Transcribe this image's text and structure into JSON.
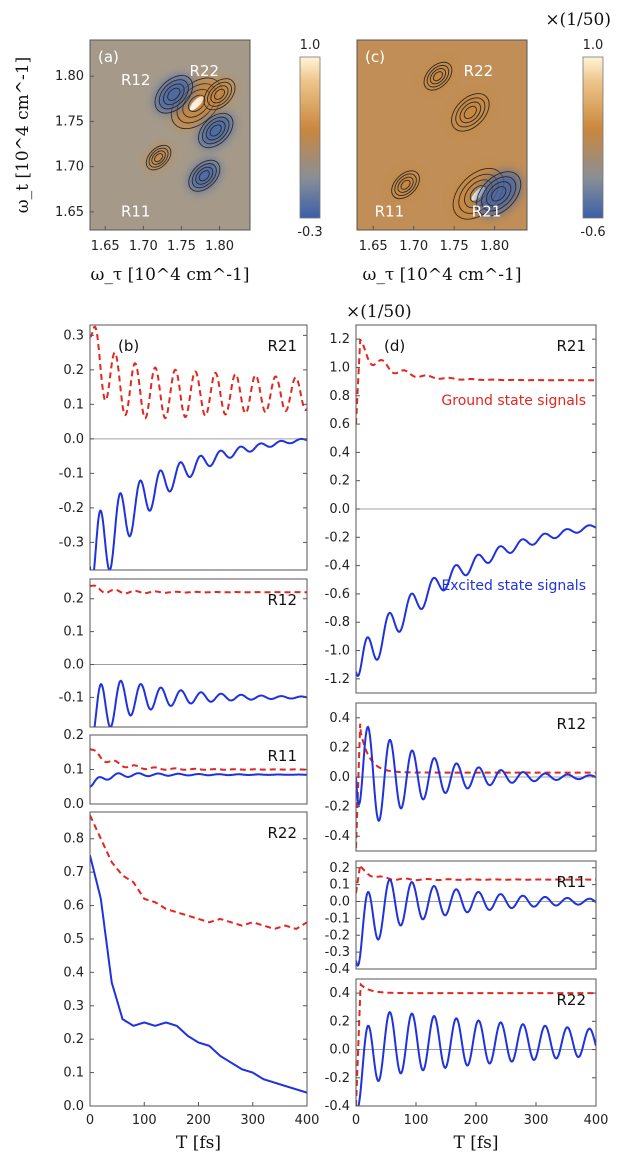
{
  "colors": {
    "excited": "#1f32e0",
    "ground": "#e3261e",
    "zero_line": "#a0a0a0",
    "map_pos": "#c9873e",
    "map_neg": "#3f63a8",
    "map_bg": "#93908a"
  },
  "chart_data": [
    {
      "id": "a",
      "type": "heatmap",
      "panel_label": "(a)",
      "xlabel": "ω_τ [10^4 cm^-1]",
      "ylabel": "ω_t [10^4 cm^-1]",
      "xticks": [
        "1.65",
        "1.70",
        "1.75",
        "1.80"
      ],
      "yticks": [
        "1.65",
        "1.70",
        "1.75",
        "1.80"
      ],
      "xlim": [
        1.63,
        1.84
      ],
      "ylim": [
        1.63,
        1.84
      ],
      "colorbar": {
        "max": "1.0",
        "min": "-0.3",
        "scale_note": ""
      },
      "peak_labels": [
        {
          "text": "R12",
          "x": 1.69,
          "y": 1.79
        },
        {
          "text": "R22",
          "x": 1.78,
          "y": 1.8
        },
        {
          "text": "R11",
          "x": 1.69,
          "y": 1.645
        }
      ],
      "features": [
        {
          "x": 1.77,
          "y": 1.77,
          "sign": 1,
          "amp": 1.0
        },
        {
          "x": 1.74,
          "y": 1.78,
          "sign": -1,
          "amp": 0.6
        },
        {
          "x": 1.795,
          "y": 1.74,
          "sign": -1,
          "amp": 0.5
        },
        {
          "x": 1.78,
          "y": 1.69,
          "sign": -1,
          "amp": 0.4
        },
        {
          "x": 1.8,
          "y": 1.78,
          "sign": 1,
          "amp": 0.4
        },
        {
          "x": 1.72,
          "y": 1.71,
          "sign": 1,
          "amp": 0.2
        }
      ]
    },
    {
      "id": "c",
      "type": "heatmap",
      "panel_label": "(c)",
      "xlabel": "ω_τ [10^4 cm^-1]",
      "ylabel": "",
      "xticks": [
        "1.65",
        "1.70",
        "1.75",
        "1.80"
      ],
      "yticks": [],
      "xlim": [
        1.63,
        1.84
      ],
      "ylim": [
        1.63,
        1.84
      ],
      "colorbar": {
        "max": "1.0",
        "min": "-0.6",
        "scale_note": "×(1/50)"
      },
      "peak_labels": [
        {
          "text": "R22",
          "x": 1.78,
          "y": 1.8
        },
        {
          "text": "R11",
          "x": 1.67,
          "y": 1.645
        },
        {
          "text": "R21",
          "x": 1.79,
          "y": 1.645
        }
      ],
      "features": [
        {
          "x": 1.78,
          "y": 1.67,
          "sign": 1,
          "amp": 1.0
        },
        {
          "x": 1.805,
          "y": 1.67,
          "sign": -1,
          "amp": 0.8
        },
        {
          "x": 1.77,
          "y": 1.76,
          "sign": 1,
          "amp": 0.6
        },
        {
          "x": 1.73,
          "y": 1.8,
          "sign": 1,
          "amp": 0.3
        },
        {
          "x": 1.69,
          "y": 1.68,
          "sign": 1,
          "amp": 0.3
        }
      ]
    },
    {
      "id": "b_R21",
      "type": "line",
      "panel_label": "(b)",
      "signal_label": "R21",
      "xlim": [
        0,
        400
      ],
      "ylim": [
        -0.38,
        0.33
      ],
      "yticks": [
        "0.3",
        "0.2",
        "0.1",
        "0.0",
        "-0.1",
        "-0.2",
        "-0.3"
      ],
      "series": [
        {
          "role": "ground",
          "style": "dashed",
          "model": "osc",
          "base": 0.13,
          "start": 0.3,
          "tau": 30,
          "amp": 0.09,
          "damp": 600,
          "period": 37,
          "phase": 0
        },
        {
          "role": "excited",
          "style": "solid",
          "model": "osc",
          "base": 0.02,
          "start": -0.37,
          "tau": 140,
          "amp": 0.14,
          "damp": 110,
          "period": 37,
          "phase": 1.6
        }
      ]
    },
    {
      "id": "b_R12",
      "type": "line",
      "signal_label": "R12",
      "xlim": [
        0,
        400
      ],
      "ylim": [
        -0.19,
        0.26
      ],
      "yticks": [
        "0.2",
        "0.1",
        "0.0",
        "-0.1"
      ],
      "series": [
        {
          "role": "ground",
          "style": "dashed",
          "model": "osc",
          "base": 0.22,
          "start": 0.24,
          "tau": 20,
          "amp": 0.01,
          "damp": 80,
          "period": 37,
          "phase": 0
        },
        {
          "role": "excited",
          "style": "solid",
          "model": "osc",
          "base": -0.1,
          "start": -0.19,
          "tau": 25,
          "amp": 0.1,
          "damp": 110,
          "period": 37,
          "phase": 1.8
        }
      ]
    },
    {
      "id": "b_R11",
      "type": "line",
      "signal_label": "R11",
      "xlim": [
        0,
        400
      ],
      "ylim": [
        0.0,
        0.2
      ],
      "yticks": [
        "0.2",
        "0.1",
        "0.0"
      ],
      "series": [
        {
          "role": "ground",
          "style": "dashed",
          "model": "osc",
          "base": 0.1,
          "start": 0.16,
          "tau": 40,
          "amp": 0.01,
          "damp": 100,
          "period": 37,
          "phase": 0
        },
        {
          "role": "excited",
          "style": "solid",
          "model": "osc",
          "base": 0.085,
          "start": 0.05,
          "tau": 20,
          "amp": 0.01,
          "damp": 120,
          "period": 37,
          "phase": 1.0
        }
      ]
    },
    {
      "id": "b_R22",
      "type": "line",
      "signal_label": "R22",
      "xlim": [
        0,
        400
      ],
      "ylim": [
        0.0,
        0.88
      ],
      "yticks": [
        "0.8",
        "0.7",
        "0.6",
        "0.5",
        "0.4",
        "0.3",
        "0.2",
        "0.1",
        "0.0"
      ],
      "xticks": [
        "0",
        "100",
        "200",
        "300",
        "400"
      ],
      "xlabel": "T [fs]",
      "series": [
        {
          "role": "ground",
          "style": "dashed",
          "points": [
            [
              0,
              0.87
            ],
            [
              20,
              0.8
            ],
            [
              40,
              0.73
            ],
            [
              60,
              0.69
            ],
            [
              80,
              0.67
            ],
            [
              100,
              0.62
            ],
            [
              120,
              0.61
            ],
            [
              140,
              0.59
            ],
            [
              160,
              0.58
            ],
            [
              180,
              0.57
            ],
            [
              200,
              0.56
            ],
            [
              220,
              0.55
            ],
            [
              240,
              0.56
            ],
            [
              260,
              0.55
            ],
            [
              280,
              0.54
            ],
            [
              300,
              0.55
            ],
            [
              320,
              0.54
            ],
            [
              340,
              0.53
            ],
            [
              360,
              0.54
            ],
            [
              380,
              0.53
            ],
            [
              400,
              0.55
            ]
          ]
        },
        {
          "role": "excited",
          "style": "solid",
          "points": [
            [
              0,
              0.75
            ],
            [
              20,
              0.62
            ],
            [
              40,
              0.37
            ],
            [
              60,
              0.26
            ],
            [
              80,
              0.24
            ],
            [
              100,
              0.25
            ],
            [
              120,
              0.24
            ],
            [
              140,
              0.25
            ],
            [
              160,
              0.24
            ],
            [
              180,
              0.21
            ],
            [
              200,
              0.19
            ],
            [
              220,
              0.18
            ],
            [
              240,
              0.15
            ],
            [
              260,
              0.13
            ],
            [
              280,
              0.11
            ],
            [
              300,
              0.1
            ],
            [
              320,
              0.08
            ],
            [
              340,
              0.07
            ],
            [
              360,
              0.06
            ],
            [
              380,
              0.05
            ],
            [
              400,
              0.04
            ]
          ]
        }
      ]
    },
    {
      "id": "d_R21",
      "type": "line",
      "panel_label": "(d)",
      "signal_label": "R21",
      "scale_note": "×(1/50)",
      "xlim": [
        0,
        400
      ],
      "ylim": [
        -1.3,
        1.3
      ],
      "yticks": [
        "1.2",
        "1.0",
        "0.8",
        "0.6",
        "0.4",
        "0.2",
        "0.0",
        "-0.2",
        "-0.4",
        "-0.6",
        "-0.8",
        "-1.0",
        "-1.2"
      ],
      "annotations": [
        {
          "text": "Ground state signals",
          "role": "ground"
        },
        {
          "text": "Excited state signals",
          "role": "excited"
        }
      ],
      "series": [
        {
          "role": "ground",
          "style": "dashed",
          "model": "spike",
          "base": 0.91,
          "start": 0.6,
          "peak": 1.28,
          "tau": 50,
          "amp": 0.06,
          "damp": 60,
          "period": 37
        },
        {
          "role": "excited",
          "style": "solid",
          "model": "osc",
          "base": 0.0,
          "start": -1.15,
          "tau": 180,
          "amp": 0.15,
          "damp": 180,
          "period": 37,
          "phase": 1.5,
          "dip": -1.15
        }
      ]
    },
    {
      "id": "d_R12",
      "type": "line",
      "signal_label": "R12",
      "xlim": [
        0,
        400
      ],
      "ylim": [
        -0.5,
        0.5
      ],
      "yticks": [
        "0.4",
        "0.2",
        "0.0",
        "-0.2",
        "-0.4"
      ],
      "series": [
        {
          "role": "ground",
          "style": "dashed",
          "model": "spike",
          "base": 0.03,
          "start": -0.48,
          "peak": 0.48,
          "tau": 15,
          "amp": 0.0,
          "damp": 50,
          "period": 37
        },
        {
          "role": "excited",
          "style": "solid",
          "model": "osc",
          "base": 0.0,
          "start": 0.0,
          "tau": 20,
          "amp": 0.42,
          "damp": 110,
          "period": 37,
          "phase": 1.8
        }
      ]
    },
    {
      "id": "d_R11",
      "type": "line",
      "signal_label": "R11",
      "xlim": [
        0,
        400
      ],
      "ylim": [
        -0.4,
        0.24
      ],
      "yticks": [
        "0.2",
        "0.1",
        "0.0",
        "-0.1",
        "-0.2",
        "-0.3",
        "-0.4"
      ],
      "series": [
        {
          "role": "ground",
          "style": "dashed",
          "model": "spike",
          "base": 0.13,
          "start": 0.05,
          "peak": 0.24,
          "tau": 20,
          "amp": 0.01,
          "damp": 100,
          "period": 37
        },
        {
          "role": "excited",
          "style": "solid",
          "model": "osc",
          "base": 0.0,
          "start": -0.35,
          "tau": 20,
          "amp": 0.22,
          "damp": 150,
          "period": 37,
          "phase": 1.7
        }
      ]
    },
    {
      "id": "d_R22",
      "type": "line",
      "signal_label": "R22",
      "xlim": [
        0,
        400
      ],
      "ylim": [
        -0.4,
        0.5
      ],
      "yticks": [
        "0.4",
        "0.2",
        "0.0",
        "-0.2",
        "-0.4"
      ],
      "xticks": [
        "0",
        "100",
        "200",
        "300",
        "400"
      ],
      "xlabel": "T [fs]",
      "series": [
        {
          "role": "ground",
          "style": "dashed",
          "model": "spike",
          "base": 0.4,
          "start": -0.4,
          "peak": 0.5,
          "tau": 15,
          "amp": 0.0,
          "damp": 50,
          "period": 37
        },
        {
          "role": "excited",
          "style": "solid",
          "model": "osc",
          "base": 0.05,
          "start": -0.4,
          "tau": 15,
          "amp": 0.26,
          "damp": 400,
          "period": 37,
          "phase": 1.7
        }
      ]
    }
  ]
}
